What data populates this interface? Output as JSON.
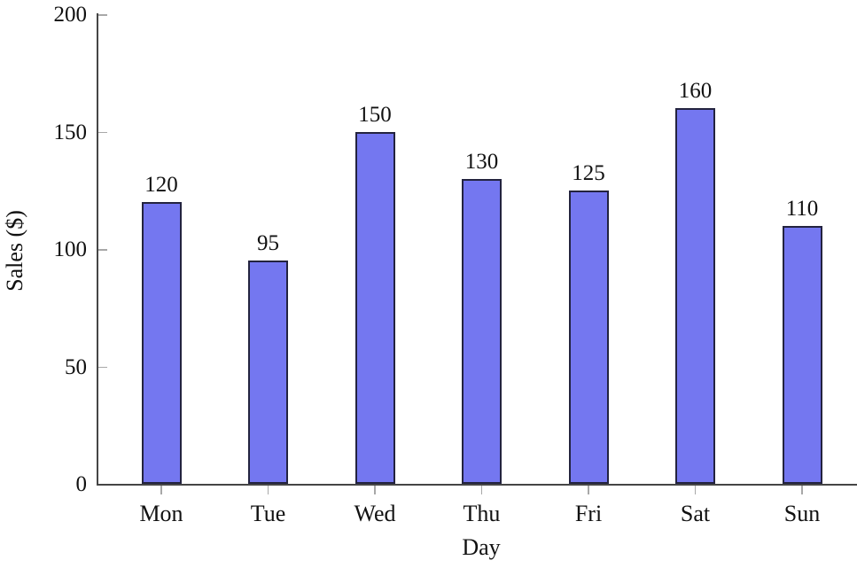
{
  "chart_data": {
    "type": "bar",
    "categories": [
      "Mon",
      "Tue",
      "Wed",
      "Thu",
      "Fri",
      "Sat",
      "Sun"
    ],
    "values": [
      120,
      95,
      150,
      130,
      125,
      160,
      110
    ],
    "bar_value_labels": [
      "120",
      "95",
      "150",
      "130",
      "125",
      "160",
      "110"
    ],
    "title": "",
    "xlabel": "Day",
    "ylabel": "Sales ($)",
    "yticks": [
      0,
      50,
      100,
      150,
      200
    ],
    "ylim": [
      0,
      200
    ],
    "grid": false,
    "legend": "none",
    "data_labels_position": "above-bars",
    "colors": {
      "bar_fill": "#7477f0",
      "bar_border": "#23233f",
      "axis_line": "#454545",
      "tick_mark": "#a8a8a8",
      "text": "#111111"
    }
  }
}
